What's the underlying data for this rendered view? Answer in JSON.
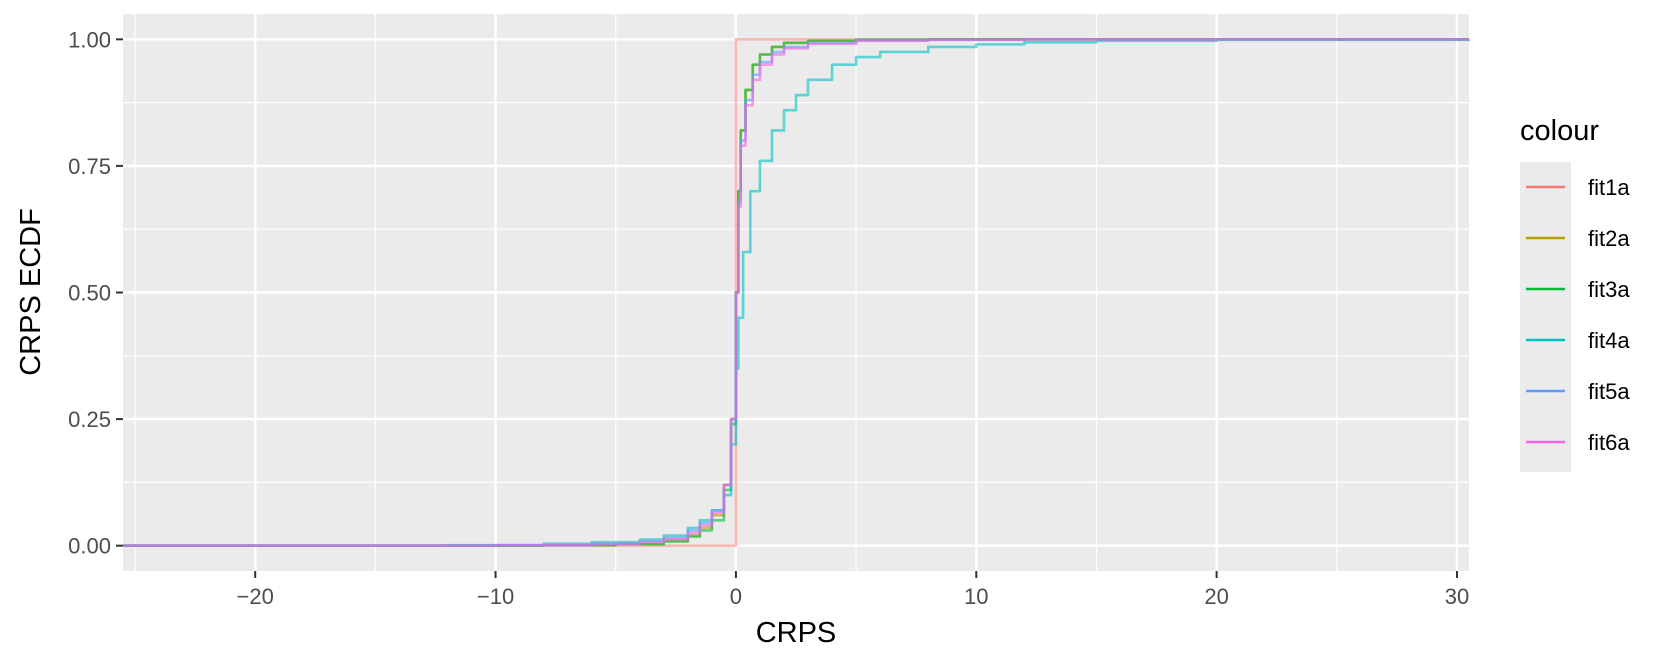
{
  "chart_data": {
    "type": "line",
    "title": "",
    "xlabel": "CRPS",
    "ylabel": "CRPS ECDF",
    "xlim": [
      -25.5,
      30.5
    ],
    "ylim": [
      -0.05,
      1.05
    ],
    "x_ticks": [
      -20,
      -10,
      0,
      10,
      20,
      30
    ],
    "x_tick_labels": [
      "−20",
      "−10",
      "0",
      "10",
      "20",
      "30"
    ],
    "y_ticks": [
      0,
      0.25,
      0.5,
      0.75,
      1.0
    ],
    "y_tick_labels": [
      "0.00",
      "0.25",
      "0.50",
      "0.75",
      "1.00"
    ],
    "grid": true,
    "legend": {
      "title": "colour",
      "position": "right"
    },
    "series": [
      {
        "name": "fit1a",
        "color": "#F8766D",
        "opacity": 0.5,
        "x": [
          -25.5,
          0,
          0,
          30.5
        ],
        "y": [
          0,
          0,
          1,
          1
        ]
      },
      {
        "name": "fit2a",
        "color": "#B79F00",
        "opacity": 0.6,
        "x": [
          -25.5,
          -8,
          -5,
          -3,
          -2,
          -1.5,
          -1,
          -0.5,
          -0.2,
          0,
          0.1,
          0.2,
          0.4,
          0.7,
          1.0,
          1.5,
          2.0,
          3.0,
          5.0,
          8.0,
          30.5
        ],
        "y": [
          0,
          0.001,
          0.003,
          0.01,
          0.02,
          0.035,
          0.06,
          0.12,
          0.25,
          0.5,
          0.7,
          0.82,
          0.9,
          0.95,
          0.97,
          0.985,
          0.993,
          0.997,
          0.999,
          1.0,
          1.0
        ]
      },
      {
        "name": "fit3a",
        "color": "#00BA38",
        "opacity": 0.6,
        "x": [
          -25.5,
          -8,
          -5,
          -3,
          -2,
          -1.5,
          -1,
          -0.5,
          -0.2,
          0,
          0.1,
          0.2,
          0.4,
          0.7,
          1.0,
          1.5,
          2.0,
          3.0,
          5.0,
          8.0,
          30.5
        ],
        "y": [
          0,
          0.001,
          0.003,
          0.008,
          0.018,
          0.03,
          0.05,
          0.11,
          0.24,
          0.5,
          0.7,
          0.82,
          0.9,
          0.95,
          0.97,
          0.985,
          0.993,
          0.997,
          0.999,
          1.0,
          1.0
        ]
      },
      {
        "name": "fit4a",
        "color": "#00BFC4",
        "opacity": 0.6,
        "x": [
          -25.5,
          -12,
          -8,
          -6,
          -4,
          -3,
          -2,
          -1.5,
          -1,
          -0.5,
          -0.2,
          0,
          0.1,
          0.3,
          0.6,
          1.0,
          1.5,
          2.0,
          2.5,
          3.0,
          4.0,
          5.0,
          6.0,
          8.0,
          10.0,
          12.0,
          15.0,
          20.0,
          30.5
        ],
        "y": [
          0,
          0.001,
          0.004,
          0.007,
          0.012,
          0.02,
          0.035,
          0.05,
          0.07,
          0.1,
          0.2,
          0.35,
          0.45,
          0.58,
          0.7,
          0.76,
          0.82,
          0.86,
          0.89,
          0.92,
          0.95,
          0.965,
          0.975,
          0.985,
          0.99,
          0.994,
          0.997,
          0.999,
          1.0
        ]
      },
      {
        "name": "fit5a",
        "color": "#619CFF",
        "opacity": 0.6,
        "x": [
          -25.5,
          -10,
          -6,
          -4,
          -3,
          -2,
          -1.5,
          -1,
          -0.5,
          -0.2,
          0,
          0.1,
          0.2,
          0.4,
          0.7,
          1.0,
          1.5,
          2.0,
          3.0,
          5.0,
          8.0,
          12.0,
          30.5
        ],
        "y": [
          0,
          0.001,
          0.004,
          0.008,
          0.015,
          0.03,
          0.045,
          0.07,
          0.12,
          0.25,
          0.5,
          0.68,
          0.8,
          0.88,
          0.93,
          0.955,
          0.975,
          0.985,
          0.993,
          0.998,
          0.999,
          1.0,
          1.0
        ]
      },
      {
        "name": "fit6a",
        "color": "#F564E3",
        "opacity": 0.6,
        "x": [
          -25.5,
          -10,
          -6,
          -4,
          -3,
          -2,
          -1.5,
          -1,
          -0.5,
          -0.2,
          0,
          0.1,
          0.2,
          0.4,
          0.7,
          1.0,
          1.5,
          2.0,
          3.0,
          5.0,
          8.0,
          12.0,
          30.5
        ],
        "y": [
          0,
          0.001,
          0.003,
          0.007,
          0.013,
          0.025,
          0.04,
          0.065,
          0.12,
          0.25,
          0.5,
          0.67,
          0.79,
          0.87,
          0.92,
          0.95,
          0.97,
          0.982,
          0.991,
          0.997,
          0.999,
          1.0,
          1.0
        ]
      }
    ]
  }
}
